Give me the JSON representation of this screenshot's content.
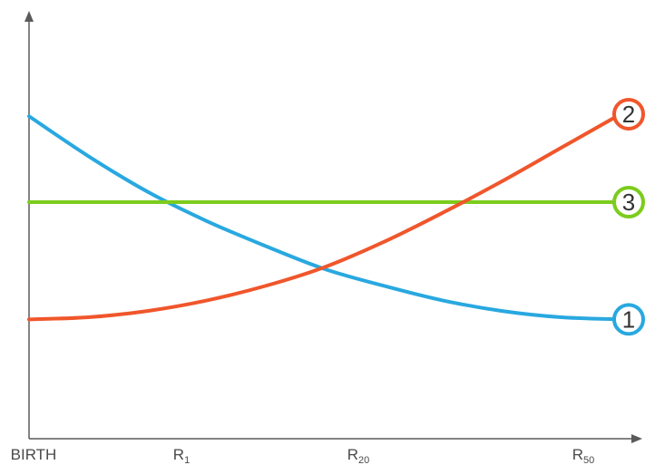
{
  "chart_data": {
    "type": "line",
    "title": "",
    "xlabel": "",
    "ylabel": "",
    "x_ticks": [
      {
        "label": "BIRTH",
        "sub": ""
      },
      {
        "label": "R",
        "sub": "1"
      },
      {
        "label": "R",
        "sub": "20"
      },
      {
        "label": "R",
        "sub": "50"
      }
    ],
    "x": [
      0,
      0.1,
      0.2,
      0.3,
      0.4,
      0.5,
      0.6,
      0.7,
      0.8,
      0.9,
      1.0
    ],
    "xlim": [
      0,
      1
    ],
    "ylim": [
      0,
      1
    ],
    "grid": false,
    "legend": "badges at right end of each line",
    "series": [
      {
        "name": "1",
        "color": "#29a8e0",
        "values": [
          0.77,
          0.675,
          0.59,
          0.52,
          0.46,
          0.405,
          0.365,
          0.33,
          0.305,
          0.29,
          0.285
        ]
      },
      {
        "name": "2",
        "color": "#f0562b",
        "values": [
          0.285,
          0.29,
          0.305,
          0.33,
          0.365,
          0.41,
          0.47,
          0.54,
          0.615,
          0.695,
          0.775
        ]
      },
      {
        "name": "3",
        "color": "#7ccc1c",
        "values": [
          0.565,
          0.565,
          0.565,
          0.565,
          0.565,
          0.565,
          0.565,
          0.565,
          0.565,
          0.565,
          0.565
        ]
      }
    ]
  },
  "axis_color": "#5a5a5a"
}
